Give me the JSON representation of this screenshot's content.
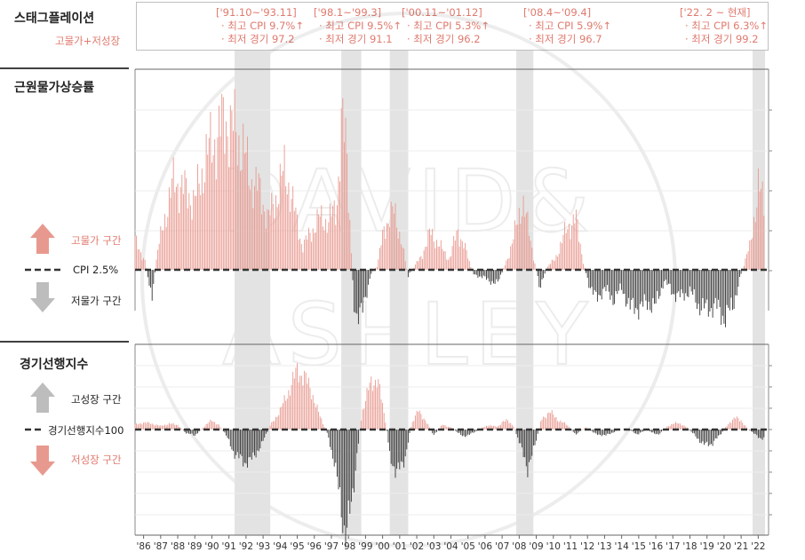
{
  "panels": {
    "stagflation": {
      "title": "스태그플레이션",
      "subtitle": "고물가+저성장"
    },
    "inflation": {
      "title": "근원물가상승률",
      "up_label": "고물가 구간",
      "down_label": "저물가 구간",
      "ref_label": "CPI 2.5%"
    },
    "leading": {
      "title": "경기선행지수",
      "up_label": "고성장 구간",
      "down_label": "저성장 구간",
      "ref_label": "경기선행지수100"
    }
  },
  "annotations": [
    {
      "period": "['91.10~'93.11]",
      "cpi": "· 최고 CPI  9.7%↑",
      "cli": "· 최저 경기  97.2"
    },
    {
      "period": "['98.1~'99.3]",
      "cpi": "· 최고 CPI  9.5%↑",
      "cli": "· 최저 경기  91.1"
    },
    {
      "period": "['00.11~'01.12]",
      "cpi": "· 최고 CPI  5.3%↑",
      "cli": "· 최저 경기  96.2"
    },
    {
      "period": "['08.4~'09.4]",
      "cpi": "· 최고 CPI  5.9%↑",
      "cli": "· 최저 경기  96.7"
    },
    {
      "period": "['22. 2 ~ 현재]",
      "cpi": "· 최고 CPI  6.3%↑",
      "cli": "· 최저 경기  99.2"
    }
  ],
  "watermark": {
    "line1": "DAVID&",
    "line2": "ASHLEY"
  },
  "colors": {
    "above": "#e8998f",
    "below": "#333333",
    "accent": "#e07a6e",
    "shade": "#e3e3e3",
    "arrow_up_red": "#e8998f",
    "arrow_grey": "#bdbdbd"
  },
  "chart_data": [
    {
      "type": "bar",
      "title": "근원물가상승률",
      "x_ticks": [
        "'86",
        "'87",
        "'88",
        "'89",
        "'90",
        "'91",
        "'92",
        "'93",
        "'94",
        "'95",
        "'96",
        "'97",
        "'98",
        "'99",
        "'00",
        "'01",
        "'02",
        "'03",
        "'04",
        "'05",
        "'06",
        "'07",
        "'08",
        "'09",
        "'10",
        "'11",
        "'12",
        "'13",
        "'14",
        "'15",
        "'16",
        "'17",
        "'18",
        "'19",
        "'20",
        "'21",
        "'22"
      ],
      "reference": {
        "label": "CPI 2.5%",
        "value": 2.5
      },
      "shaded_periods": [
        [
          "1991.83",
          "1993.92"
        ],
        [
          "1998.08",
          "1999.25"
        ],
        [
          "2000.92",
          "2002.0"
        ],
        [
          "2008.33",
          "2009.33"
        ],
        [
          "2022.17",
          "2022.9"
        ]
      ],
      "series_anchors_year_value": [
        [
          1986.0,
          3.9
        ],
        [
          1986.6,
          2.9
        ],
        [
          1987.0,
          1.1
        ],
        [
          1987.3,
          3.3
        ],
        [
          1987.8,
          5.2
        ],
        [
          1988.3,
          6.8
        ],
        [
          1988.8,
          6.4
        ],
        [
          1989.5,
          5.8
        ],
        [
          1990.2,
          8.0
        ],
        [
          1990.8,
          8.9
        ],
        [
          1991.3,
          9.7
        ],
        [
          1991.8,
          9.2
        ],
        [
          1992.3,
          8.3
        ],
        [
          1992.8,
          6.8
        ],
        [
          1993.3,
          6.3
        ],
        [
          1993.8,
          4.9
        ],
        [
          1994.3,
          6.1
        ],
        [
          1994.8,
          7.3
        ],
        [
          1995.3,
          5.5
        ],
        [
          1995.8,
          3.6
        ],
        [
          1996.3,
          4.3
        ],
        [
          1996.8,
          5.0
        ],
        [
          1997.3,
          4.8
        ],
        [
          1997.8,
          5.5
        ],
        [
          1998.1,
          9.5
        ],
        [
          1998.4,
          8.2
        ],
        [
          1998.8,
          1.0
        ],
        [
          1999.0,
          0.4
        ],
        [
          1999.3,
          0.4
        ],
        [
          1999.8,
          2.3
        ],
        [
          2000.2,
          2.7
        ],
        [
          2000.6,
          4.6
        ],
        [
          2001.2,
          5.3
        ],
        [
          2001.6,
          3.9
        ],
        [
          2002.0,
          2.2
        ],
        [
          2002.4,
          2.7
        ],
        [
          2002.8,
          3.2
        ],
        [
          2003.3,
          4.3
        ],
        [
          2003.8,
          3.7
        ],
        [
          2004.4,
          3.0
        ],
        [
          2004.9,
          4.4
        ],
        [
          2005.3,
          3.6
        ],
        [
          2005.8,
          2.3
        ],
        [
          2006.5,
          2.1
        ],
        [
          2007.2,
          1.8
        ],
        [
          2007.8,
          3.0
        ],
        [
          2008.3,
          4.4
        ],
        [
          2008.7,
          5.9
        ],
        [
          2009.3,
          3.3
        ],
        [
          2009.7,
          1.7
        ],
        [
          2010.2,
          2.7
        ],
        [
          2010.6,
          3.0
        ],
        [
          2011.3,
          4.5
        ],
        [
          2011.8,
          5.0
        ],
        [
          2012.3,
          2.7
        ],
        [
          2012.6,
          1.8
        ],
        [
          2013.0,
          1.1
        ],
        [
          2013.5,
          1.6
        ],
        [
          2014.0,
          1.1
        ],
        [
          2014.5,
          1.6
        ],
        [
          2015.0,
          0.7
        ],
        [
          2015.5,
          0.7
        ],
        [
          2016.0,
          0.9
        ],
        [
          2016.5,
          0.8
        ],
        [
          2017.0,
          2.0
        ],
        [
          2017.5,
          1.4
        ],
        [
          2018.0,
          1.2
        ],
        [
          2018.5,
          1.5
        ],
        [
          2019.0,
          0.8
        ],
        [
          2019.5,
          0.6
        ],
        [
          2020.0,
          0.8
        ],
        [
          2020.5,
          0.2
        ],
        [
          2021.0,
          0.7
        ],
        [
          2021.5,
          2.3
        ],
        [
          2022.0,
          3.6
        ],
        [
          2022.5,
          6.3
        ],
        [
          2022.9,
          5.7
        ]
      ]
    },
    {
      "type": "bar",
      "title": "경기선행지수",
      "x_ticks": [
        "'86",
        "'87",
        "'88",
        "'89",
        "'90",
        "'91",
        "'92",
        "'93",
        "'94",
        "'95",
        "'96",
        "'97",
        "'98",
        "'99",
        "'00",
        "'01",
        "'02",
        "'03",
        "'04",
        "'05",
        "'06",
        "'07",
        "'08",
        "'09",
        "'10",
        "'11",
        "'12",
        "'13",
        "'14",
        "'15",
        "'16",
        "'17",
        "'18",
        "'19",
        "'20",
        "'21",
        "'22"
      ],
      "reference": {
        "label": "경기선행지수100",
        "value": 100
      },
      "shaded_periods": [
        [
          "1991.83",
          "1993.92"
        ],
        [
          "1998.08",
          "1999.25"
        ],
        [
          "2000.92",
          "2002.0"
        ],
        [
          "2008.33",
          "2009.33"
        ],
        [
          "2022.17",
          "2022.9"
        ]
      ],
      "series_anchors_year_value": [
        [
          1986.0,
          100.4
        ],
        [
          1986.5,
          100.6
        ],
        [
          1987.0,
          100.5
        ],
        [
          1987.5,
          100.3
        ],
        [
          1988.0,
          100.5
        ],
        [
          1988.5,
          100.4
        ],
        [
          1989.0,
          99.7
        ],
        [
          1989.5,
          99.5
        ],
        [
          1990.0,
          100.2
        ],
        [
          1990.5,
          100.8
        ],
        [
          1990.9,
          100.4
        ],
        [
          1991.3,
          99.6
        ],
        [
          1991.8,
          98.0
        ],
        [
          1992.4,
          97.2
        ],
        [
          1992.9,
          97.5
        ],
        [
          1993.5,
          99.0
        ],
        [
          1993.9,
          100.3
        ],
        [
          1994.5,
          101.6
        ],
        [
          1995.0,
          103.3
        ],
        [
          1995.5,
          105.0
        ],
        [
          1995.9,
          104.6
        ],
        [
          1996.4,
          103.0
        ],
        [
          1996.8,
          101.2
        ],
        [
          1997.3,
          99.5
        ],
        [
          1997.7,
          97.0
        ],
        [
          1998.0,
          94.0
        ],
        [
          1998.3,
          91.1
        ],
        [
          1998.7,
          93.5
        ],
        [
          1999.0,
          98.0
        ],
        [
          1999.3,
          101.5
        ],
        [
          1999.8,
          104.0
        ],
        [
          2000.2,
          104.3
        ],
        [
          2000.7,
          100.5
        ],
        [
          2000.9,
          98.0
        ],
        [
          2001.3,
          96.2
        ],
        [
          2001.8,
          97.5
        ],
        [
          2002.2,
          100.5
        ],
        [
          2002.6,
          101.6
        ],
        [
          2003.0,
          100.8
        ],
        [
          2003.5,
          99.5
        ],
        [
          2004.0,
          100.4
        ],
        [
          2004.5,
          100.2
        ],
        [
          2005.2,
          99.4
        ],
        [
          2005.8,
          99.7
        ],
        [
          2006.5,
          100.3
        ],
        [
          2007.3,
          100.3
        ],
        [
          2007.8,
          100.9
        ],
        [
          2008.2,
          100.2
        ],
        [
          2008.6,
          98.5
        ],
        [
          2009.0,
          96.7
        ],
        [
          2009.4,
          98.5
        ],
        [
          2009.8,
          100.9
        ],
        [
          2010.3,
          101.5
        ],
        [
          2010.8,
          100.8
        ],
        [
          2011.3,
          100.4
        ],
        [
          2011.8,
          99.6
        ],
        [
          2012.4,
          100.2
        ],
        [
          2013.0,
          99.6
        ],
        [
          2013.6,
          99.5
        ],
        [
          2014.2,
          99.9
        ],
        [
          2014.8,
          100.1
        ],
        [
          2015.4,
          99.6
        ],
        [
          2016.0,
          100.0
        ],
        [
          2016.6,
          99.5
        ],
        [
          2017.2,
          100.3
        ],
        [
          2017.8,
          100.6
        ],
        [
          2018.3,
          100.2
        ],
        [
          2018.8,
          99.5
        ],
        [
          2019.3,
          98.7
        ],
        [
          2019.8,
          98.8
        ],
        [
          2020.3,
          99.6
        ],
        [
          2020.8,
          100.6
        ],
        [
          2021.2,
          101.0
        ],
        [
          2021.5,
          100.8
        ],
        [
          2021.8,
          100.2
        ],
        [
          2022.2,
          99.7
        ],
        [
          2022.6,
          99.3
        ],
        [
          2022.9,
          99.2
        ]
      ]
    }
  ]
}
